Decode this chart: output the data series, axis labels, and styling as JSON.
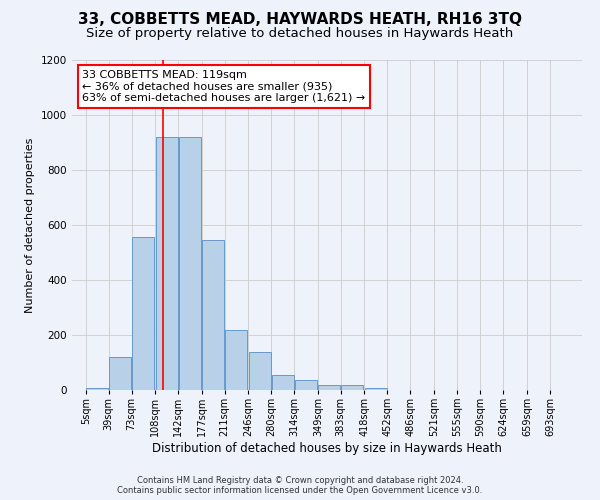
{
  "title": "33, COBBETTS MEAD, HAYWARDS HEATH, RH16 3TQ",
  "subtitle": "Size of property relative to detached houses in Haywards Heath",
  "xlabel": "Distribution of detached houses by size in Haywards Heath",
  "ylabel": "Number of detached properties",
  "footer_line1": "Contains HM Land Registry data © Crown copyright and database right 2024.",
  "footer_line2": "Contains public sector information licensed under the Open Government Licence v3.0.",
  "annotation_title": "33 COBBETTS MEAD: 119sqm",
  "annotation_line1": "← 36% of detached houses are smaller (935)",
  "annotation_line2": "63% of semi-detached houses are larger (1,621) →",
  "property_size": 119,
  "bin_edges": [
    5,
    39,
    73,
    108,
    142,
    177,
    211,
    246,
    280,
    314,
    349,
    383,
    418,
    452,
    486,
    521,
    555,
    590,
    624,
    659,
    693
  ],
  "bin_labels": [
    "5sqm",
    "39sqm",
    "73sqm",
    "108sqm",
    "142sqm",
    "177sqm",
    "211sqm",
    "246sqm",
    "280sqm",
    "314sqm",
    "349sqm",
    "383sqm",
    "418sqm",
    "452sqm",
    "486sqm",
    "521sqm",
    "555sqm",
    "590sqm",
    "624sqm",
    "659sqm",
    "693sqm"
  ],
  "bar_values": [
    8,
    120,
    555,
    920,
    920,
    545,
    220,
    140,
    55,
    35,
    20,
    20,
    8,
    0,
    0,
    0,
    0,
    0,
    0,
    0
  ],
  "bar_color": "#b8d0e8",
  "bar_edge_color": "#6699cc",
  "vline_color": "red",
  "vline_x": 119,
  "ylim": [
    0,
    1200
  ],
  "yticks": [
    0,
    200,
    400,
    600,
    800,
    1000,
    1200
  ],
  "grid_color": "#cccccc",
  "bg_color": "#eef2fb",
  "annotation_box_color": "white",
  "annotation_box_edge": "red",
  "title_fontsize": 11,
  "subtitle_fontsize": 9.5,
  "xlabel_fontsize": 8.5,
  "ylabel_fontsize": 8,
  "tick_fontsize": 7,
  "footer_fontsize": 6,
  "annotation_fontsize": 8
}
